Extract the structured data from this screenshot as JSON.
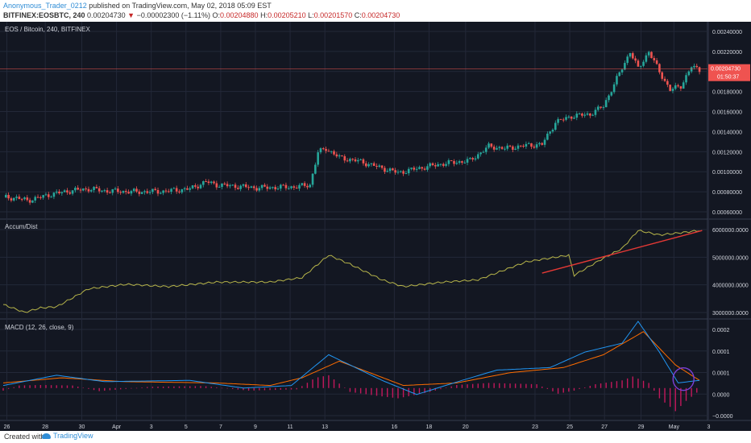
{
  "header": {
    "author": "Anonymous_Trader_0212",
    "published_text": "published on TradingView.com, May 02, 2018 05:09 EST",
    "symbol": "BITFINEX:EOSBTC, 240",
    "change_arrow": "▼",
    "change": "−0.00002300 (−1.11%)",
    "open_label": "O:",
    "open": "0.00204880",
    "high_label": "H:",
    "high": "0.00205210",
    "low_label": "L:",
    "low": "0.00201570",
    "close_label": "C:",
    "close": "0.00204730",
    "last": "0.00204730"
  },
  "colors": {
    "background": "#131722",
    "grid": "#232838",
    "up": "#26a69a",
    "down": "#ef5350",
    "accum": "#b7b54a",
    "macd": "#2196f3",
    "signal": "#ff6d00",
    "hist": "#c2185b",
    "trendline": "#e53935",
    "circle": "#7b3fd6",
    "price_line": "#ef5350"
  },
  "chart_data": [
    {
      "type": "candlestick",
      "title": "EOS / Bitcoin, 240, BITFINEX",
      "ylabel": "",
      "ylim": [
        0.0006,
        0.0025
      ],
      "y_ticks": [
        "0.00240000",
        "0.00220000",
        "0.00200000",
        "0.00180000",
        "0.00160000",
        "0.00140000",
        "0.00120000",
        "0.00100000",
        "0.00080000",
        "0.00060000"
      ],
      "price_line": 0.0020473,
      "last_price_label": "0.00204730",
      "countdown_label": "01:50:37",
      "close_path": [
        {
          "x": 0,
          "y": 0.000775
        },
        {
          "x": 5,
          "y": 0.00077
        },
        {
          "x": 9,
          "y": 0.000745
        },
        {
          "x": 13,
          "y": 0.00077
        },
        {
          "x": 17,
          "y": 0.0008
        },
        {
          "x": 25,
          "y": 0.00084
        },
        {
          "x": 32,
          "y": 0.00086
        },
        {
          "x": 38,
          "y": 0.00084
        },
        {
          "x": 50,
          "y": 0.00083
        },
        {
          "x": 60,
          "y": 0.000835
        },
        {
          "x": 70,
          "y": 0.00086
        },
        {
          "x": 76,
          "y": 0.00093
        },
        {
          "x": 80,
          "y": 0.0009
        },
        {
          "x": 95,
          "y": 0.00087
        },
        {
          "x": 110,
          "y": 0.00088
        },
        {
          "x": 115,
          "y": 0.0009
        },
        {
          "x": 118,
          "y": 0.00122
        },
        {
          "x": 121,
          "y": 0.00126
        },
        {
          "x": 126,
          "y": 0.00117
        },
        {
          "x": 134,
          "y": 0.00113
        },
        {
          "x": 140,
          "y": 0.00108
        },
        {
          "x": 148,
          "y": 0.00102
        },
        {
          "x": 155,
          "y": 0.00106
        },
        {
          "x": 165,
          "y": 0.00111
        },
        {
          "x": 175,
          "y": 0.00114
        },
        {
          "x": 182,
          "y": 0.00128
        },
        {
          "x": 188,
          "y": 0.00126
        },
        {
          "x": 196,
          "y": 0.00129
        },
        {
          "x": 202,
          "y": 0.0013
        },
        {
          "x": 207,
          "y": 0.00152
        },
        {
          "x": 213,
          "y": 0.00158
        },
        {
          "x": 220,
          "y": 0.0016
        },
        {
          "x": 225,
          "y": 0.00168
        },
        {
          "x": 230,
          "y": 0.00195
        },
        {
          "x": 235,
          "y": 0.00222
        },
        {
          "x": 238,
          "y": 0.00205
        },
        {
          "x": 242,
          "y": 0.00222
        },
        {
          "x": 246,
          "y": 0.00202
        },
        {
          "x": 250,
          "y": 0.00184
        },
        {
          "x": 254,
          "y": 0.00188
        },
        {
          "x": 258,
          "y": 0.00207
        },
        {
          "x": 261,
          "y": 0.00204
        }
      ]
    },
    {
      "type": "line",
      "title": "Accum/Dist",
      "ylim": [
        2600000000,
        6800000000
      ],
      "y_ticks": [
        "6000000.0000",
        "5000000.0000",
        "4000000.0000",
        "3000000.0000"
      ],
      "series": [
        {
          "points": [
            {
              "x": 0,
              "y": 3100000000
            },
            {
              "x": 8,
              "y": 2750000000
            },
            {
              "x": 14,
              "y": 2950000000
            },
            {
              "x": 20,
              "y": 3000000000
            },
            {
              "x": 32,
              "y": 3800000000
            },
            {
              "x": 46,
              "y": 4000000000
            },
            {
              "x": 62,
              "y": 3900000000
            },
            {
              "x": 80,
              "y": 4100000000
            },
            {
              "x": 100,
              "y": 4100000000
            },
            {
              "x": 112,
              "y": 4300000000
            },
            {
              "x": 122,
              "y": 5300000000
            },
            {
              "x": 130,
              "y": 4900000000
            },
            {
              "x": 142,
              "y": 4200000000
            },
            {
              "x": 150,
              "y": 3900000000
            },
            {
              "x": 165,
              "y": 4100000000
            },
            {
              "x": 178,
              "y": 4200000000
            },
            {
              "x": 196,
              "y": 5000000000
            },
            {
              "x": 212,
              "y": 5300000000
            },
            {
              "x": 214,
              "y": 4400000000
            },
            {
              "x": 224,
              "y": 5100000000
            },
            {
              "x": 232,
              "y": 5600000000
            },
            {
              "x": 238,
              "y": 6400000000
            },
            {
              "x": 246,
              "y": 6200000000
            },
            {
              "x": 254,
              "y": 6300000000
            },
            {
              "x": 261,
              "y": 6400000000
            }
          ]
        }
      ],
      "trendline": [
        {
          "x": 202,
          "y": 4500000000
        },
        {
          "x": 262,
          "y": 6400000000
        }
      ]
    },
    {
      "type": "line",
      "title": "MACD (12, 26, close, 9)",
      "ylim": [
        -0.00012,
        0.00026
      ],
      "y_ticks": [
        "0.0002",
        "0.0001",
        "0.0001",
        "0.0000",
        "−0.0000"
      ],
      "series": [
        {
          "points": [
            {
              "x": 0,
              "y": 1e-05
            },
            {
              "x": 20,
              "y": 5e-05
            },
            {
              "x": 38,
              "y": 2.5e-05
            },
            {
              "x": 70,
              "y": 3e-05
            },
            {
              "x": 90,
              "y": 0
            },
            {
              "x": 108,
              "y": 1e-05
            },
            {
              "x": 122,
              "y": 0.00013
            },
            {
              "x": 142,
              "y": 3e-05
            },
            {
              "x": 155,
              "y": -2.5e-05
            },
            {
              "x": 172,
              "y": 3e-05
            },
            {
              "x": 185,
              "y": 7e-05
            },
            {
              "x": 205,
              "y": 8e-05
            },
            {
              "x": 218,
              "y": 0.00014
            },
            {
              "x": 232,
              "y": 0.000175
            },
            {
              "x": 238,
              "y": 0.00026
            },
            {
              "x": 246,
              "y": 0.00014
            },
            {
              "x": 253,
              "y": 2e-05
            },
            {
              "x": 261,
              "y": 3e-05
            }
          ]
        },
        {
          "points": [
            {
              "x": 0,
              "y": 2e-05
            },
            {
              "x": 22,
              "y": 4e-05
            },
            {
              "x": 45,
              "y": 2.5e-05
            },
            {
              "x": 80,
              "y": 2e-05
            },
            {
              "x": 100,
              "y": 1e-05
            },
            {
              "x": 112,
              "y": 4e-05
            },
            {
              "x": 126,
              "y": 0.000105
            },
            {
              "x": 150,
              "y": 1e-05
            },
            {
              "x": 170,
              "y": 2e-05
            },
            {
              "x": 190,
              "y": 6e-05
            },
            {
              "x": 210,
              "y": 8e-05
            },
            {
              "x": 225,
              "y": 0.00013
            },
            {
              "x": 240,
              "y": 0.00022
            },
            {
              "x": 252,
              "y": 9e-05
            },
            {
              "x": 261,
              "y": 3e-05
            }
          ]
        }
      ],
      "histogram": [
        {
          "x": 0,
          "y": -1e-05
        },
        {
          "x": 6,
          "y": 1e-05
        },
        {
          "x": 14,
          "y": 1.2e-05
        },
        {
          "x": 26,
          "y": 1e-05
        },
        {
          "x": 36,
          "y": -1.2e-05
        },
        {
          "x": 55,
          "y": 5e-06
        },
        {
          "x": 75,
          "y": 8e-06
        },
        {
          "x": 92,
          "y": -1e-05
        },
        {
          "x": 110,
          "y": -5e-06
        },
        {
          "x": 117,
          "y": 4e-05
        },
        {
          "x": 122,
          "y": 5e-05
        },
        {
          "x": 130,
          "y": -1.5e-05
        },
        {
          "x": 140,
          "y": -3e-05
        },
        {
          "x": 148,
          "y": -4e-05
        },
        {
          "x": 160,
          "y": -1.5e-05
        },
        {
          "x": 170,
          "y": 1.2e-05
        },
        {
          "x": 182,
          "y": 2e-05
        },
        {
          "x": 200,
          "y": 1.5e-05
        },
        {
          "x": 208,
          "y": -2.2e-05
        },
        {
          "x": 214,
          "y": -1e-05
        },
        {
          "x": 222,
          "y": 1.5e-05
        },
        {
          "x": 232,
          "y": 3e-05
        },
        {
          "x": 236,
          "y": 4.5e-05
        },
        {
          "x": 242,
          "y": 2e-05
        },
        {
          "x": 246,
          "y": -4e-05
        },
        {
          "x": 252,
          "y": -9e-05
        },
        {
          "x": 256,
          "y": -5e-05
        },
        {
          "x": 261,
          "y": -1e-05
        }
      ]
    }
  ],
  "x_axis_labels": [
    {
      "x": 2,
      "text": "26"
    },
    {
      "x": 23,
      "text": "28"
    },
    {
      "x": 43,
      "text": "30"
    },
    {
      "x": 62,
      "text": "Apr"
    },
    {
      "x": 81,
      "text": "3"
    },
    {
      "x": 100,
      "text": "5"
    },
    {
      "x": 119,
      "text": "7"
    },
    {
      "x": 138,
      "text": "9"
    },
    {
      "x": 157,
      "text": "11"
    },
    {
      "x": 176,
      "text": "13"
    },
    {
      "x": 214,
      "text": "16"
    },
    {
      "x": 233,
      "text": "18"
    },
    {
      "x": 253,
      "text": "20"
    },
    {
      "x": 291,
      "text": "23"
    },
    {
      "x": 310,
      "text": "25"
    },
    {
      "x": 329,
      "text": "27"
    },
    {
      "x": 349,
      "text": "29"
    },
    {
      "x": 367,
      "text": "May"
    },
    {
      "x": 386,
      "text": "3"
    }
  ],
  "footer": {
    "created_with": "Created with",
    "brand": "TradingView"
  }
}
